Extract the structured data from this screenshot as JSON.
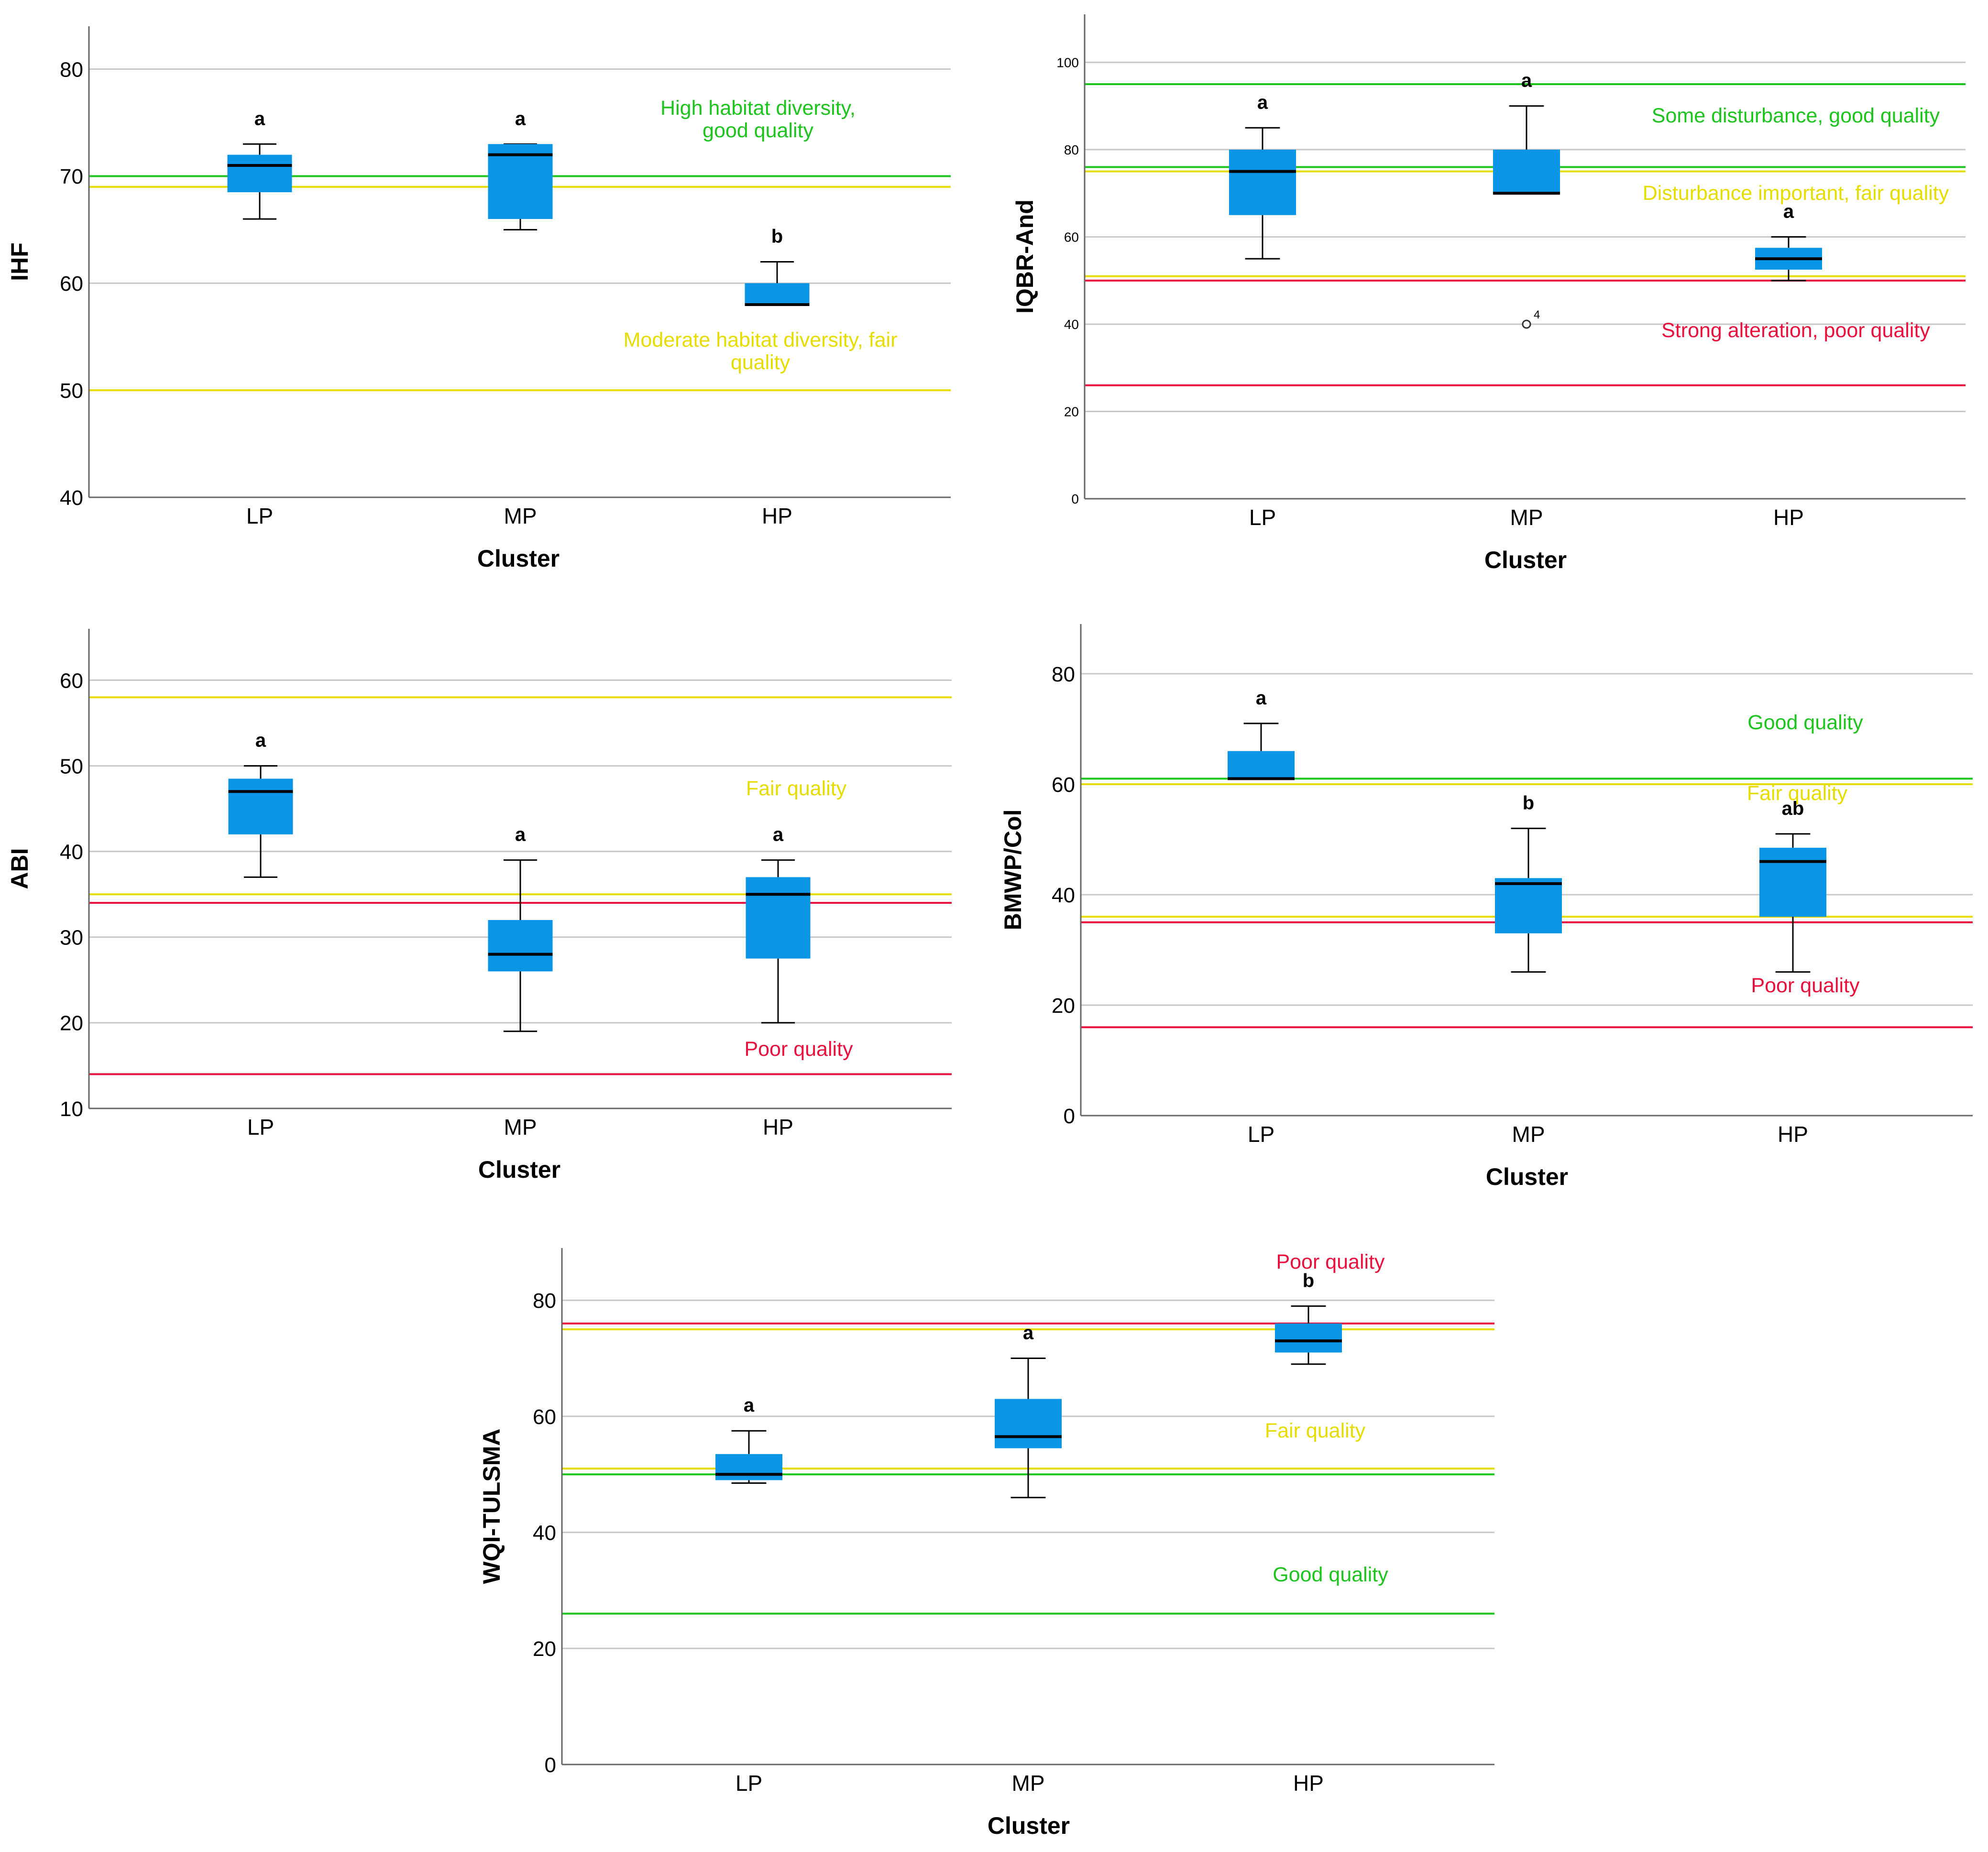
{
  "chart_data": [
    {
      "type": "boxplot",
      "ylabel": "IHF",
      "xlabel": "Cluster",
      "ylim": [
        40,
        84
      ],
      "yticks": [
        40,
        50,
        60,
        70,
        80
      ],
      "categories": [
        "LP",
        "MP",
        "HP"
      ],
      "boxes": [
        {
          "category": "LP",
          "min": 66,
          "q1": 68.5,
          "median": 71,
          "q3": 72,
          "max": 73,
          "letter": "a"
        },
        {
          "category": "MP",
          "min": 65,
          "q1": 66,
          "median": 72,
          "q3": 73,
          "max": 73,
          "letter": "a"
        },
        {
          "category": "HP",
          "min": 58,
          "q1": 58,
          "median": 58,
          "q3": 60,
          "max": 62,
          "letter": "b"
        }
      ],
      "outliers": [],
      "reference_lines": [
        {
          "value": 70,
          "color": "#1ec41e"
        },
        {
          "value": 69,
          "color": "#e6dc00"
        },
        {
          "value": 50,
          "color": "#e6dc00"
        }
      ],
      "annotations": [
        {
          "lines": [
            "High habitat diversity,",
            "good quality"
          ],
          "color": "#1ec41e"
        },
        {
          "lines": [
            "Moderate habitat diversity, fair",
            "quality"
          ],
          "color": "#e6dc00"
        }
      ]
    },
    {
      "type": "boxplot",
      "ylabel": "IQBR-And",
      "xlabel": "Cluster",
      "ylim": [
        0,
        111
      ],
      "yticks": [
        0,
        20,
        40,
        60,
        80,
        100
      ],
      "categories": [
        "LP",
        "MP",
        "HP"
      ],
      "boxes": [
        {
          "category": "LP",
          "min": 55,
          "q1": 65,
          "median": 75,
          "q3": 80,
          "max": 85,
          "letter": "a"
        },
        {
          "category": "MP",
          "min": 70,
          "q1": 70,
          "median": 70,
          "q3": 80,
          "max": 90,
          "letter": "a"
        },
        {
          "category": "HP",
          "min": 50,
          "q1": 52.5,
          "median": 55,
          "q3": 57.5,
          "max": 60,
          "letter": "a"
        }
      ],
      "outliers": [
        {
          "category": "MP",
          "value": 40,
          "label": "4"
        }
      ],
      "reference_lines": [
        {
          "value": 95,
          "color": "#1ec41e"
        },
        {
          "value": 76,
          "color": "#1ec41e"
        },
        {
          "value": 75,
          "color": "#e6dc00"
        },
        {
          "value": 51,
          "color": "#e6dc00"
        },
        {
          "value": 50,
          "color": "#e8103c"
        },
        {
          "value": 26,
          "color": "#e8103c"
        }
      ],
      "annotations": [
        {
          "lines": [
            "Some disturbance, good quality"
          ],
          "color": "#1ec41e"
        },
        {
          "lines": [
            "Disturbance important, fair quality"
          ],
          "color": "#e6dc00"
        },
        {
          "lines": [
            "Strong alteration, poor quality"
          ],
          "color": "#e8103c"
        }
      ]
    },
    {
      "type": "boxplot",
      "ylabel": "ABI",
      "xlabel": "Cluster",
      "ylim": [
        10,
        66
      ],
      "yticks": [
        10,
        20,
        30,
        40,
        50,
        60
      ],
      "categories": [
        "LP",
        "MP",
        "HP"
      ],
      "boxes": [
        {
          "category": "LP",
          "min": 37,
          "q1": 42,
          "median": 47,
          "q3": 48.5,
          "max": 50,
          "letter": "a"
        },
        {
          "category": "MP",
          "min": 19,
          "q1": 26,
          "median": 28,
          "q3": 32,
          "max": 39,
          "letter": "a"
        },
        {
          "category": "HP",
          "min": 20,
          "q1": 27.5,
          "median": 35,
          "q3": 37,
          "max": 39,
          "letter": "a"
        }
      ],
      "outliers": [],
      "reference_lines": [
        {
          "value": 58,
          "color": "#e6dc00"
        },
        {
          "value": 35,
          "color": "#e6dc00"
        },
        {
          "value": 34,
          "color": "#e8103c"
        },
        {
          "value": 14,
          "color": "#e8103c"
        }
      ],
      "annotations": [
        {
          "lines": [
            "Fair quality"
          ],
          "color": "#e6dc00"
        },
        {
          "lines": [
            "Poor quality"
          ],
          "color": "#e8103c"
        }
      ]
    },
    {
      "type": "boxplot",
      "ylabel": "BMWP/Col",
      "xlabel": "Cluster",
      "ylim": [
        0,
        89
      ],
      "yticks": [
        0,
        20,
        40,
        60,
        80
      ],
      "categories": [
        "LP",
        "MP",
        "HP"
      ],
      "boxes": [
        {
          "category": "LP",
          "min": 61,
          "q1": 61,
          "median": 61,
          "q3": 66,
          "max": 71,
          "letter": "a"
        },
        {
          "category": "MP",
          "min": 26,
          "q1": 33,
          "median": 42,
          "q3": 43,
          "max": 52,
          "letter": "b"
        },
        {
          "category": "HP",
          "min": 26,
          "q1": 36,
          "median": 46,
          "q3": 48.5,
          "max": 51,
          "letter": "ab"
        }
      ],
      "outliers": [],
      "reference_lines": [
        {
          "value": 61,
          "color": "#1ec41e"
        },
        {
          "value": 60,
          "color": "#e6dc00"
        },
        {
          "value": 36,
          "color": "#e6dc00"
        },
        {
          "value": 35,
          "color": "#e8103c"
        },
        {
          "value": 16,
          "color": "#e8103c"
        }
      ],
      "annotations": [
        {
          "lines": [
            "Good quality"
          ],
          "color": "#1ec41e"
        },
        {
          "lines": [
            "Fair quality"
          ],
          "color": "#e6dc00"
        },
        {
          "lines": [
            "Poor quality"
          ],
          "color": "#e8103c"
        }
      ]
    },
    {
      "type": "boxplot",
      "ylabel": "WQI-TULSMA",
      "xlabel": "Cluster",
      "ylim": [
        0,
        89
      ],
      "yticks": [
        0,
        20,
        40,
        60,
        80
      ],
      "categories": [
        "LP",
        "MP",
        "HP"
      ],
      "boxes": [
        {
          "category": "LP",
          "min": 48.5,
          "q1": 49,
          "median": 50,
          "q3": 53.5,
          "max": 57.5,
          "letter": "a"
        },
        {
          "category": "MP",
          "min": 46,
          "q1": 54.5,
          "median": 56.5,
          "q3": 63,
          "max": 70,
          "letter": "a"
        },
        {
          "category": "HP",
          "min": 69,
          "q1": 71,
          "median": 73,
          "q3": 76,
          "max": 79,
          "letter": "b"
        }
      ],
      "outliers": [],
      "reference_lines": [
        {
          "value": 76,
          "color": "#e8103c"
        },
        {
          "value": 75,
          "color": "#e6dc00"
        },
        {
          "value": 51,
          "color": "#e6dc00"
        },
        {
          "value": 50,
          "color": "#1ec41e"
        },
        {
          "value": 26,
          "color": "#1ec41e"
        }
      ],
      "annotations": [
        {
          "lines": [
            "Poor quality"
          ],
          "color": "#e8103c"
        },
        {
          "lines": [
            "Fair quality"
          ],
          "color": "#e6dc00"
        },
        {
          "lines": [
            "Good quality"
          ],
          "color": "#1ec41e"
        }
      ]
    }
  ],
  "colors": {
    "box_fill": "#0a95e6",
    "median": "#000000",
    "whisker": "#000000",
    "grid": "#c8c8c8",
    "axis": "#666666"
  }
}
